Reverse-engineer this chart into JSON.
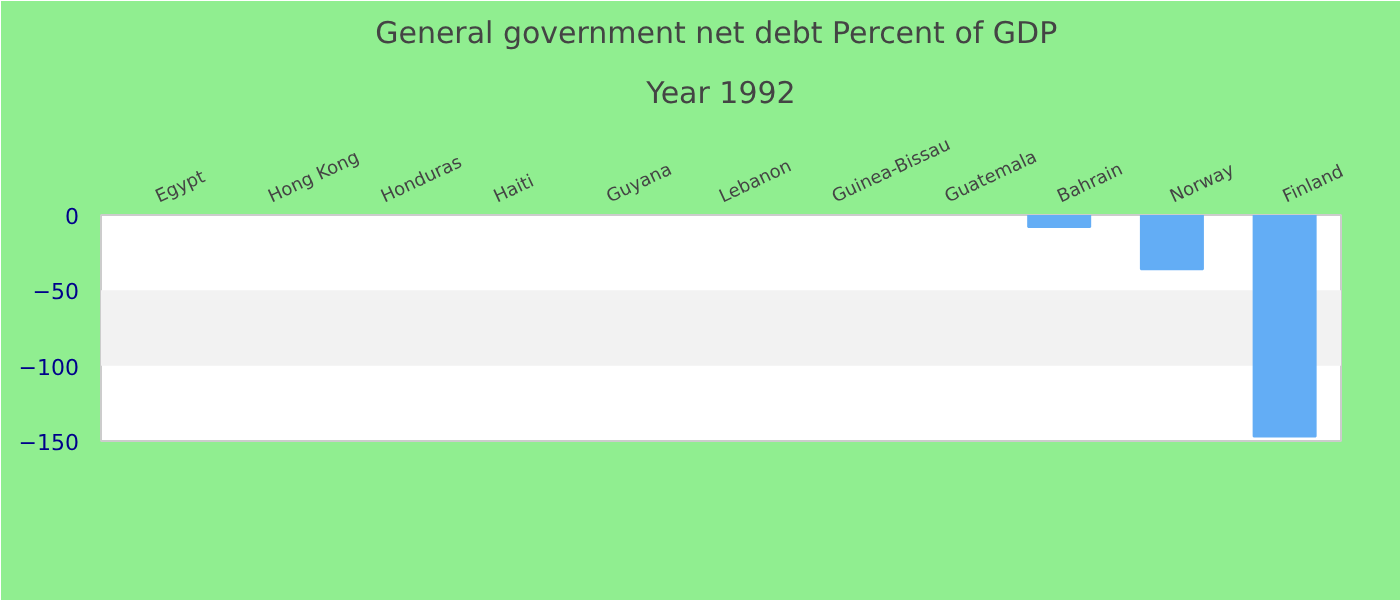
{
  "chart_data": {
    "type": "bar",
    "title": "General government net debt  Percent of GDP",
    "subtitle": "Year 1992",
    "categories": [
      "Egypt",
      "Hong Kong",
      "Honduras",
      "Haiti",
      "Guyana",
      "Lebanon",
      "Guinea-Bissau",
      "Guatemala",
      "Bahrain",
      "Norway",
      "Finland"
    ],
    "values": [
      null,
      null,
      null,
      null,
      null,
      null,
      null,
      null,
      -8,
      -36,
      -147
    ],
    "color": "#63adf5",
    "ylim": [
      -150,
      0
    ],
    "yticks": [
      -150,
      -100,
      -50,
      0
    ],
    "bands": [
      {
        "axis": "y",
        "from": -100,
        "to": -50,
        "color": "#f2f2f2"
      }
    ]
  }
}
